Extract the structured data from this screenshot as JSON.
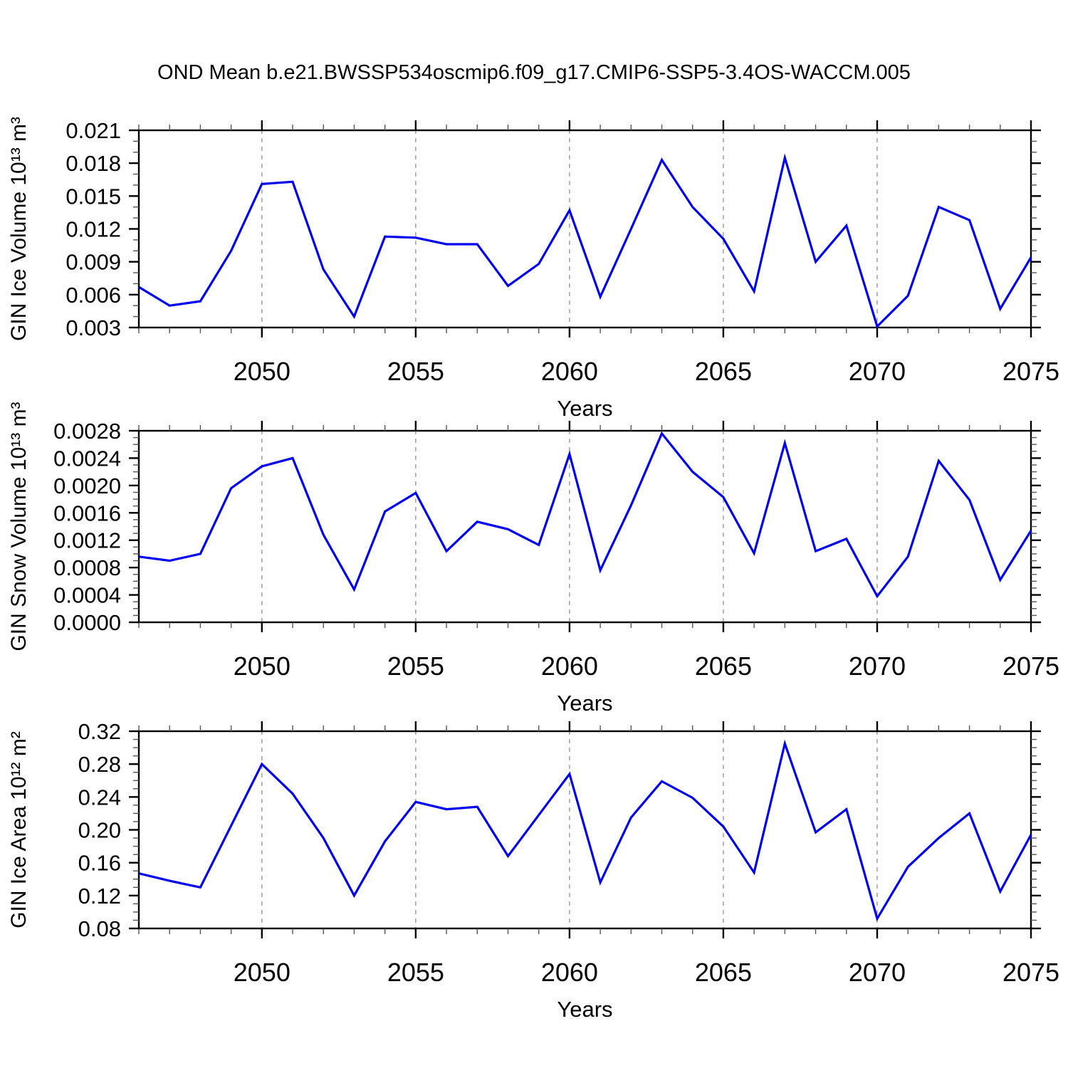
{
  "title": "OND Mean b.e21.BWSSP534oscmip6.f09_g17.CMIP6-SSP5-3.4OS-WACCM.005",
  "colors": {
    "line": "#0000ee",
    "grid": "#a6a6a6",
    "axis": "#000000",
    "minor_tick": "#555555",
    "text": "#000000",
    "background": "#ffffff"
  },
  "chart_data": [
    {
      "type": "line",
      "name": "gin-ice-volume",
      "ylabel": "GIN Ice Volume 10¹³ m³",
      "xlabel": "Years",
      "x": [
        2046,
        2047,
        2048,
        2049,
        2050,
        2051,
        2052,
        2053,
        2054,
        2055,
        2056,
        2057,
        2058,
        2059,
        2060,
        2061,
        2062,
        2063,
        2064,
        2065,
        2066,
        2067,
        2068,
        2069,
        2070,
        2071,
        2072,
        2073,
        2074,
        2075
      ],
      "values": [
        0.0067,
        0.005,
        0.0054,
        0.01,
        0.0161,
        0.0163,
        0.0083,
        0.004,
        0.0113,
        0.0112,
        0.0106,
        0.0106,
        0.0068,
        0.0088,
        0.0137,
        0.0058,
        0.012,
        0.0183,
        0.014,
        0.0111,
        0.0063,
        0.0185,
        0.009,
        0.0123,
        0.0031,
        0.0059,
        0.014,
        0.0128,
        0.0047,
        0.0094
      ],
      "xlim": [
        2046,
        2075
      ],
      "ylim": [
        0.003,
        0.021
      ],
      "yticks": [
        0.003,
        0.006,
        0.009,
        0.012,
        0.015,
        0.018,
        0.021
      ],
      "ytick_labels": [
        "0.003",
        "0.006",
        "0.009",
        "0.012",
        "0.015",
        "0.018",
        "0.021"
      ],
      "y_minor_step": 0.001,
      "xticks": [
        2050,
        2055,
        2060,
        2065,
        2070,
        2075
      ],
      "xtick_labels": [
        "2050",
        "2055",
        "2060",
        "2065",
        "2070",
        "2075"
      ],
      "grid_x": [
        2050,
        2055,
        2060,
        2065,
        2070
      ],
      "grid": "vertical-dashed",
      "legend": "none"
    },
    {
      "type": "line",
      "name": "gin-snow-volume",
      "ylabel": "GIN Snow Volume 10¹³ m³",
      "xlabel": "Years",
      "x": [
        2046,
        2047,
        2048,
        2049,
        2050,
        2051,
        2052,
        2053,
        2054,
        2055,
        2056,
        2057,
        2058,
        2059,
        2060,
        2061,
        2062,
        2063,
        2064,
        2065,
        2066,
        2067,
        2068,
        2069,
        2070,
        2071,
        2072,
        2073,
        2074,
        2075
      ],
      "values": [
        0.00096,
        0.0009,
        0.001,
        0.00196,
        0.00228,
        0.0024,
        0.00128,
        0.00048,
        0.00162,
        0.00189,
        0.00104,
        0.00147,
        0.00136,
        0.00113,
        0.00246,
        0.00076,
        0.00171,
        0.00276,
        0.0022,
        0.00183,
        0.00101,
        0.00262,
        0.00104,
        0.00122,
        0.00038,
        0.00096,
        0.00236,
        0.00179,
        0.00062,
        0.00134
      ],
      "xlim": [
        2046,
        2075
      ],
      "ylim": [
        0.0,
        0.0028
      ],
      "yticks": [
        0.0,
        0.0004,
        0.0008,
        0.0012,
        0.0016,
        0.002,
        0.0024,
        0.0028
      ],
      "ytick_labels": [
        "0.0000",
        "0.0004",
        "0.0008",
        "0.0012",
        "0.0016",
        "0.0020",
        "0.0024",
        "0.0028"
      ],
      "y_minor_step": 0.0001,
      "xticks": [
        2050,
        2055,
        2060,
        2065,
        2070,
        2075
      ],
      "xtick_labels": [
        "2050",
        "2055",
        "2060",
        "2065",
        "2070",
        "2075"
      ],
      "grid_x": [
        2050,
        2055,
        2060,
        2065,
        2070
      ],
      "grid": "vertical-dashed",
      "legend": "none"
    },
    {
      "type": "line",
      "name": "gin-ice-area",
      "ylabel": "GIN Ice Area 10¹² m²",
      "xlabel": "Years",
      "x": [
        2046,
        2047,
        2048,
        2049,
        2050,
        2051,
        2052,
        2053,
        2054,
        2055,
        2056,
        2057,
        2058,
        2059,
        2060,
        2061,
        2062,
        2063,
        2064,
        2065,
        2066,
        2067,
        2068,
        2069,
        2070,
        2071,
        2072,
        2073,
        2074,
        2075
      ],
      "values": [
        0.147,
        0.138,
        0.13,
        0.205,
        0.28,
        0.244,
        0.19,
        0.12,
        0.186,
        0.234,
        0.225,
        0.228,
        0.168,
        0.218,
        0.268,
        0.136,
        0.215,
        0.259,
        0.239,
        0.204,
        0.148,
        0.305,
        0.197,
        0.225,
        0.092,
        0.155,
        0.19,
        0.22,
        0.125,
        0.194
      ],
      "xlim": [
        2046,
        2075
      ],
      "ylim": [
        0.08,
        0.32
      ],
      "yticks": [
        0.08,
        0.12,
        0.16,
        0.2,
        0.24,
        0.28,
        0.32
      ],
      "ytick_labels": [
        "0.08",
        "0.12",
        "0.16",
        "0.20",
        "0.24",
        "0.28",
        "0.32"
      ],
      "y_minor_step": 0.01,
      "xticks": [
        2050,
        2055,
        2060,
        2065,
        2070,
        2075
      ],
      "xtick_labels": [
        "2050",
        "2055",
        "2060",
        "2065",
        "2070",
        "2075"
      ],
      "grid_x": [
        2050,
        2055,
        2060,
        2065,
        2070
      ],
      "grid": "vertical-dashed",
      "legend": "none"
    }
  ]
}
